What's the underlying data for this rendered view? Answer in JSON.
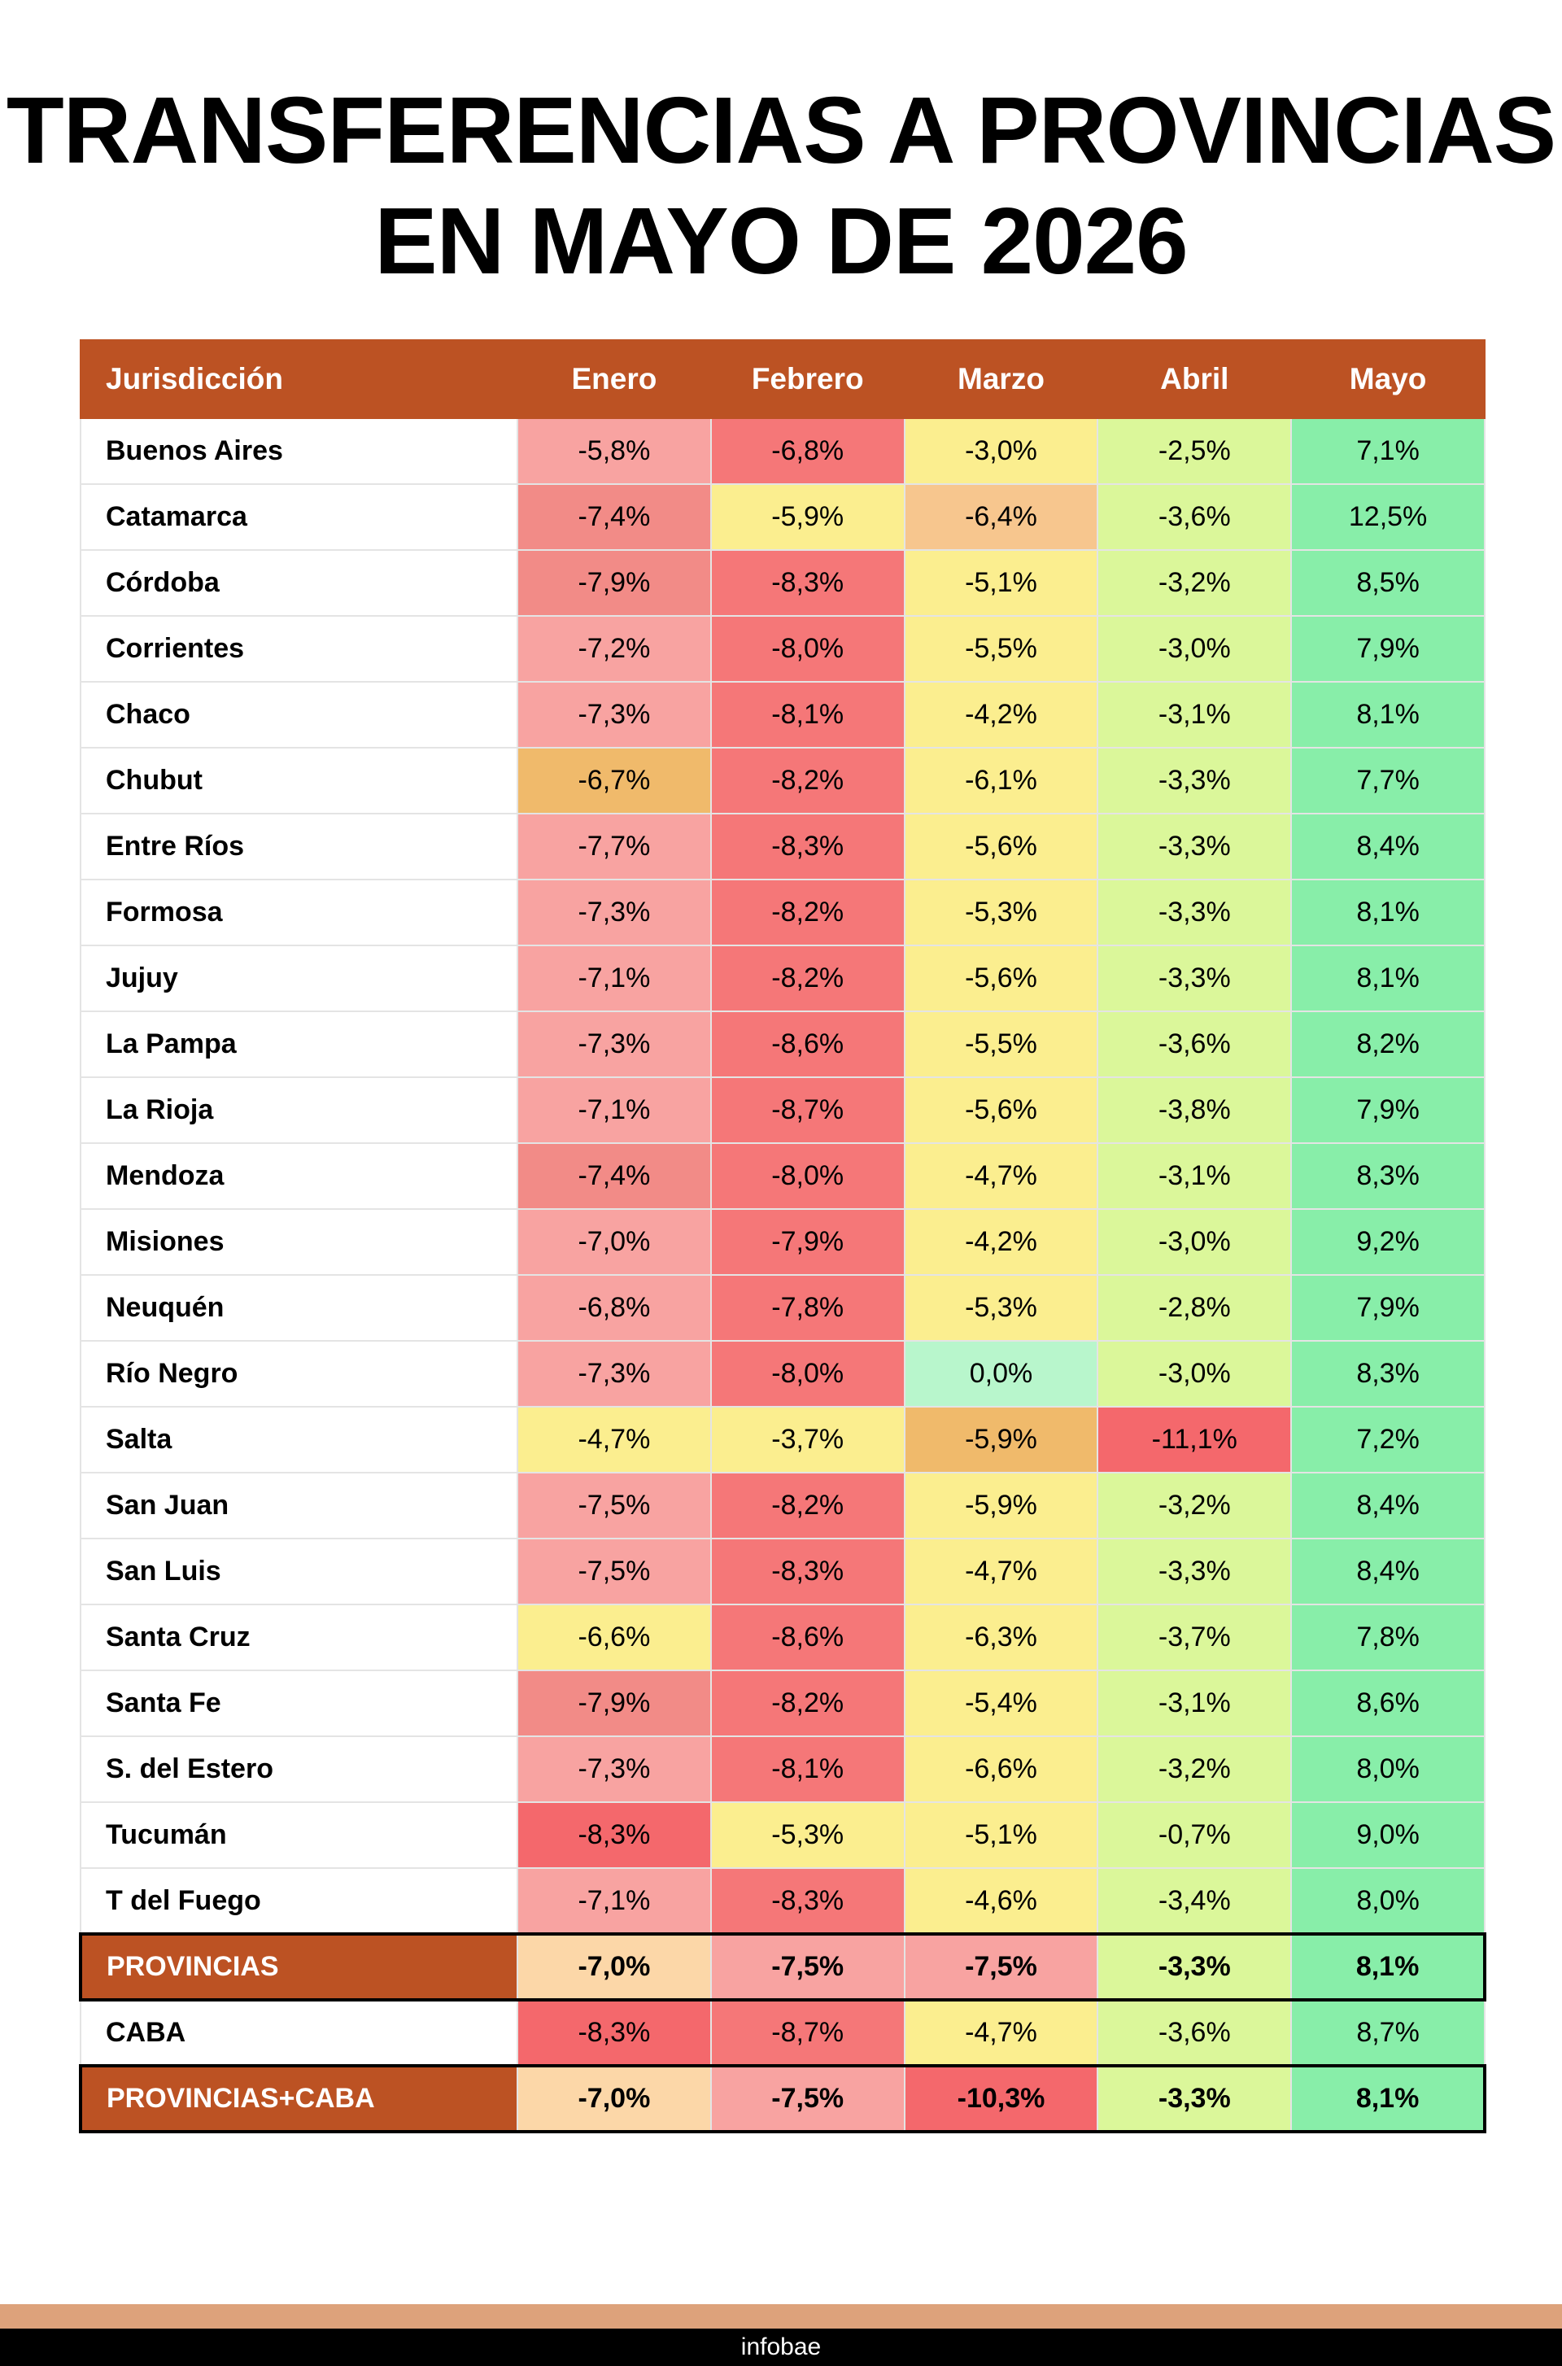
{
  "title": {
    "line1": "TRANSFERENCIAS A PROVINCIAS",
    "line2": "EN MAYO DE 2026"
  },
  "footer": {
    "brand": "infobae"
  },
  "colors": {
    "header_bg": "#bc5223",
    "deep_red": "#f4686c",
    "red": "#f57778",
    "muted_red": "#f28b87",
    "light_red": "#f8a3a1",
    "orange": "#f0ba6b",
    "light_orange": "#f7c68e",
    "peach": "#fcd7a8",
    "yellow": "#fbee8f",
    "light_green": "#dbf79a",
    "mint": "#b8f6cc",
    "green": "#88eea9"
  },
  "chart_data": {
    "type": "table",
    "title": "TRANSFERENCIAS A PROVINCIAS EN MAYO DE 2026",
    "columns": [
      "Jurisdicción",
      "Enero",
      "Febrero",
      "Marzo",
      "Abril",
      "Mayo"
    ],
    "rows": [
      {
        "name": "Buenos Aires",
        "values": [
          "-5,8%",
          "-6,8%",
          "-3,0%",
          "-2,5%",
          "7,1%"
        ],
        "colors": [
          "light_red",
          "red",
          "yellow",
          "light_green",
          "green"
        ]
      },
      {
        "name": "Catamarca",
        "values": [
          "-7,4%",
          "-5,9%",
          "-6,4%",
          "-3,6%",
          "12,5%"
        ],
        "colors": [
          "muted_red",
          "yellow",
          "light_orange",
          "light_green",
          "green"
        ]
      },
      {
        "name": "Córdoba",
        "values": [
          "-7,9%",
          "-8,3%",
          "-5,1%",
          "-3,2%",
          "8,5%"
        ],
        "colors": [
          "muted_red",
          "red",
          "yellow",
          "light_green",
          "green"
        ]
      },
      {
        "name": "Corrientes",
        "values": [
          "-7,2%",
          "-8,0%",
          "-5,5%",
          "-3,0%",
          "7,9%"
        ],
        "colors": [
          "light_red",
          "red",
          "yellow",
          "light_green",
          "green"
        ]
      },
      {
        "name": "Chaco",
        "values": [
          "-7,3%",
          "-8,1%",
          "-4,2%",
          "-3,1%",
          "8,1%"
        ],
        "colors": [
          "light_red",
          "red",
          "yellow",
          "light_green",
          "green"
        ]
      },
      {
        "name": "Chubut",
        "values": [
          "-6,7%",
          "-8,2%",
          "-6,1%",
          "-3,3%",
          "7,7%"
        ],
        "colors": [
          "orange",
          "red",
          "yellow",
          "light_green",
          "green"
        ]
      },
      {
        "name": "Entre Ríos",
        "values": [
          "-7,7%",
          "-8,3%",
          "-5,6%",
          "-3,3%",
          "8,4%"
        ],
        "colors": [
          "light_red",
          "red",
          "yellow",
          "light_green",
          "green"
        ]
      },
      {
        "name": "Formosa",
        "values": [
          "-7,3%",
          "-8,2%",
          "-5,3%",
          "-3,3%",
          "8,1%"
        ],
        "colors": [
          "light_red",
          "red",
          "yellow",
          "light_green",
          "green"
        ]
      },
      {
        "name": "Jujuy",
        "values": [
          "-7,1%",
          "-8,2%",
          "-5,6%",
          "-3,3%",
          "8,1%"
        ],
        "colors": [
          "light_red",
          "red",
          "yellow",
          "light_green",
          "green"
        ]
      },
      {
        "name": "La Pampa",
        "values": [
          "-7,3%",
          "-8,6%",
          "-5,5%",
          "-3,6%",
          "8,2%"
        ],
        "colors": [
          "light_red",
          "red",
          "yellow",
          "light_green",
          "green"
        ]
      },
      {
        "name": "La Rioja",
        "values": [
          "-7,1%",
          "-8,7%",
          "-5,6%",
          "-3,8%",
          "7,9%"
        ],
        "colors": [
          "light_red",
          "red",
          "yellow",
          "light_green",
          "green"
        ]
      },
      {
        "name": "Mendoza",
        "values": [
          "-7,4%",
          "-8,0%",
          "-4,7%",
          "-3,1%",
          "8,3%"
        ],
        "colors": [
          "muted_red",
          "red",
          "yellow",
          "light_green",
          "green"
        ]
      },
      {
        "name": "Misiones",
        "values": [
          "-7,0%",
          "-7,9%",
          "-4,2%",
          "-3,0%",
          "9,2%"
        ],
        "colors": [
          "light_red",
          "red",
          "yellow",
          "light_green",
          "green"
        ]
      },
      {
        "name": "Neuquén",
        "values": [
          "-6,8%",
          "-7,8%",
          "-5,3%",
          "-2,8%",
          "7,9%"
        ],
        "colors": [
          "light_red",
          "red",
          "yellow",
          "light_green",
          "green"
        ]
      },
      {
        "name": "Río Negro",
        "values": [
          "-7,3%",
          "-8,0%",
          "0,0%",
          "-3,0%",
          "8,3%"
        ],
        "colors": [
          "light_red",
          "red",
          "mint",
          "light_green",
          "green"
        ]
      },
      {
        "name": "Salta",
        "values": [
          "-4,7%",
          "-3,7%",
          "-5,9%",
          "-11,1%",
          "7,2%"
        ],
        "colors": [
          "yellow",
          "yellow",
          "orange",
          "deep_red",
          "green"
        ]
      },
      {
        "name": "San Juan",
        "values": [
          "-7,5%",
          "-8,2%",
          "-5,9%",
          "-3,2%",
          "8,4%"
        ],
        "colors": [
          "light_red",
          "red",
          "yellow",
          "light_green",
          "green"
        ]
      },
      {
        "name": "San Luis",
        "values": [
          "-7,5%",
          "-8,3%",
          "-4,7%",
          "-3,3%",
          "8,4%"
        ],
        "colors": [
          "light_red",
          "red",
          "yellow",
          "light_green",
          "green"
        ]
      },
      {
        "name": "Santa Cruz",
        "values": [
          "-6,6%",
          "-8,6%",
          "-6,3%",
          "-3,7%",
          "7,8%"
        ],
        "colors": [
          "yellow",
          "red",
          "yellow",
          "light_green",
          "green"
        ]
      },
      {
        "name": "Santa Fe",
        "values": [
          "-7,9%",
          "-8,2%",
          "-5,4%",
          "-3,1%",
          "8,6%"
        ],
        "colors": [
          "muted_red",
          "red",
          "yellow",
          "light_green",
          "green"
        ]
      },
      {
        "name": "S. del Estero",
        "values": [
          "-7,3%",
          "-8,1%",
          "-6,6%",
          "-3,2%",
          "8,0%"
        ],
        "colors": [
          "light_red",
          "red",
          "yellow",
          "light_green",
          "green"
        ]
      },
      {
        "name": "Tucumán",
        "values": [
          "-8,3%",
          "-5,3%",
          "-5,1%",
          "-0,7%",
          "9,0%"
        ],
        "colors": [
          "deep_red",
          "yellow",
          "yellow",
          "light_green",
          "green"
        ]
      },
      {
        "name": "T del Fuego",
        "values": [
          "-7,1%",
          "-8,3%",
          "-4,6%",
          "-3,4%",
          "8,0%"
        ],
        "colors": [
          "light_red",
          "red",
          "yellow",
          "light_green",
          "green"
        ]
      },
      {
        "name": "PROVINCIAS",
        "summary": true,
        "values": [
          "-7,0%",
          "-7,5%",
          "-7,5%",
          "-3,3%",
          "8,1%"
        ],
        "colors": [
          "peach",
          "light_red",
          "light_red",
          "light_green",
          "green"
        ]
      },
      {
        "name": "CABA",
        "values": [
          "-8,3%",
          "-8,7%",
          "-4,7%",
          "-3,6%",
          "8,7%"
        ],
        "colors": [
          "deep_red",
          "red",
          "yellow",
          "light_green",
          "green"
        ]
      },
      {
        "name": "PROVINCIAS+CABA",
        "summary": true,
        "values": [
          "-7,0%",
          "-7,5%",
          "-10,3%",
          "-3,3%",
          "8,1%"
        ],
        "colors": [
          "peach",
          "light_red",
          "deep_red",
          "light_green",
          "green"
        ]
      }
    ]
  }
}
